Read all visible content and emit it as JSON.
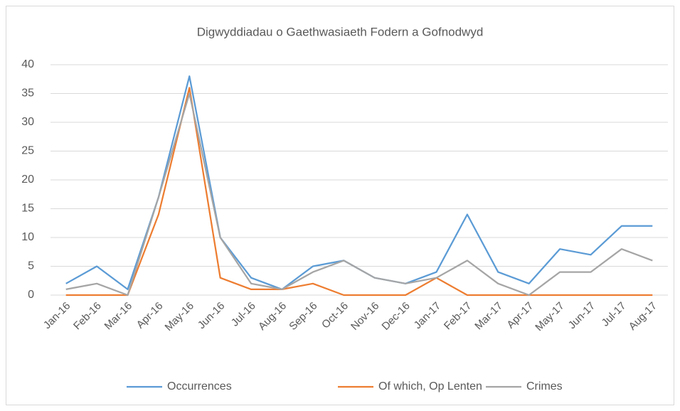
{
  "chart_data": {
    "type": "line",
    "title": "Digwyddiadau o Gaethwasiaeth Fodern a Gofnodwyd",
    "categories": [
      "Jan-16",
      "Feb-16",
      "Mar-16",
      "Apr-16",
      "May-16",
      "Jun-16",
      "Jul-16",
      "Aug-16",
      "Sep-16",
      "Oct-16",
      "Nov-16",
      "Dec-16",
      "Jan-17",
      "Feb-17",
      "Mar-17",
      "Apr-17",
      "May-17",
      "Jun-17",
      "Jul-17",
      "Aug-17"
    ],
    "series": [
      {
        "name": "Occurrences",
        "color": "#5b9bd5",
        "values": [
          2,
          5,
          1,
          17,
          38,
          10,
          3,
          1,
          5,
          6,
          3,
          2,
          4,
          14,
          4,
          2,
          8,
          7,
          12,
          12
        ]
      },
      {
        "name": "Of which, Op Lenten",
        "color": "#ed7d31",
        "values": [
          0,
          0,
          0,
          14,
          36,
          3,
          1,
          1,
          2,
          0,
          0,
          0,
          3,
          0,
          0,
          0,
          0,
          0,
          0,
          0
        ]
      },
      {
        "name": "Crimes",
        "color": "#a5a5a5",
        "values": [
          1,
          2,
          0,
          17,
          35,
          10,
          2,
          1,
          4,
          6,
          3,
          2,
          3,
          6,
          2,
          0,
          4,
          4,
          8,
          6
        ]
      }
    ],
    "ylim": [
      0,
      40
    ],
    "yticks": [
      0,
      5,
      10,
      15,
      20,
      25,
      30,
      35,
      40
    ],
    "grid": true,
    "legend": "bottom"
  }
}
